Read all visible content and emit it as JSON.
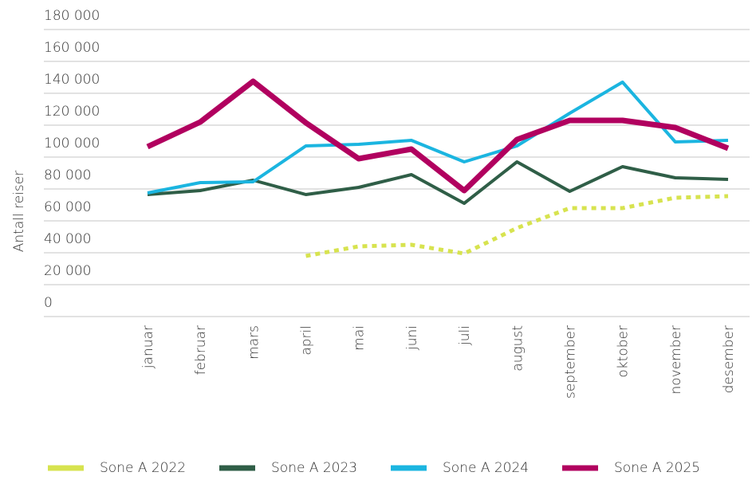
{
  "chart_data": {
    "type": "line",
    "y_label": "Antall reiser",
    "categories": [
      "januar",
      "februar",
      "mars",
      "april",
      "mai",
      "juni",
      "juli",
      "august",
      "september",
      "oktober",
      "november",
      "desember"
    ],
    "series": [
      {
        "name": "Sone A 2022",
        "color": "#d7e34f",
        "dashed": true,
        "values": [
          null,
          null,
          null,
          38000,
          44000,
          45000,
          39500,
          55500,
          68000,
          68000,
          74500,
          75500
        ]
      },
      {
        "name": "Sone A 2023",
        "color": "#2f5e47",
        "values": [
          76500,
          79000,
          85500,
          76500,
          81000,
          89000,
          71000,
          97000,
          78500,
          94000,
          87000,
          86000
        ]
      },
      {
        "name": "Sone A 2024",
        "color": "#1bb5e0",
        "values": [
          77500,
          84000,
          84500,
          107000,
          108000,
          110500,
          97000,
          107000,
          127500,
          147000,
          109500,
          110500
        ]
      },
      {
        "name": "Sone A 2025",
        "color": "#b1005f",
        "values": [
          106500,
          122000,
          147500,
          121500,
          99000,
          105000,
          79000,
          111000,
          123000,
          123000,
          118500,
          105500
        ]
      }
    ],
    "ylim": [
      0,
      180000
    ],
    "yticks": [
      0,
      {
        "value": 20000,
        "label": "20 000"
      },
      {
        "value": 40000,
        "label": "40 000"
      },
      {
        "value": 60000,
        "label": "60 000"
      },
      {
        "value": 80000,
        "label": "80 000"
      },
      {
        "value": 100000,
        "label": "100 000"
      },
      {
        "value": 120000,
        "label": "120 000"
      },
      {
        "value": 140000,
        "label": "140 000"
      },
      {
        "value": 160000,
        "label": "160 000"
      },
      {
        "value": 180000,
        "label": "180 000"
      }
    ],
    "grid": true,
    "legend": "bottom"
  }
}
